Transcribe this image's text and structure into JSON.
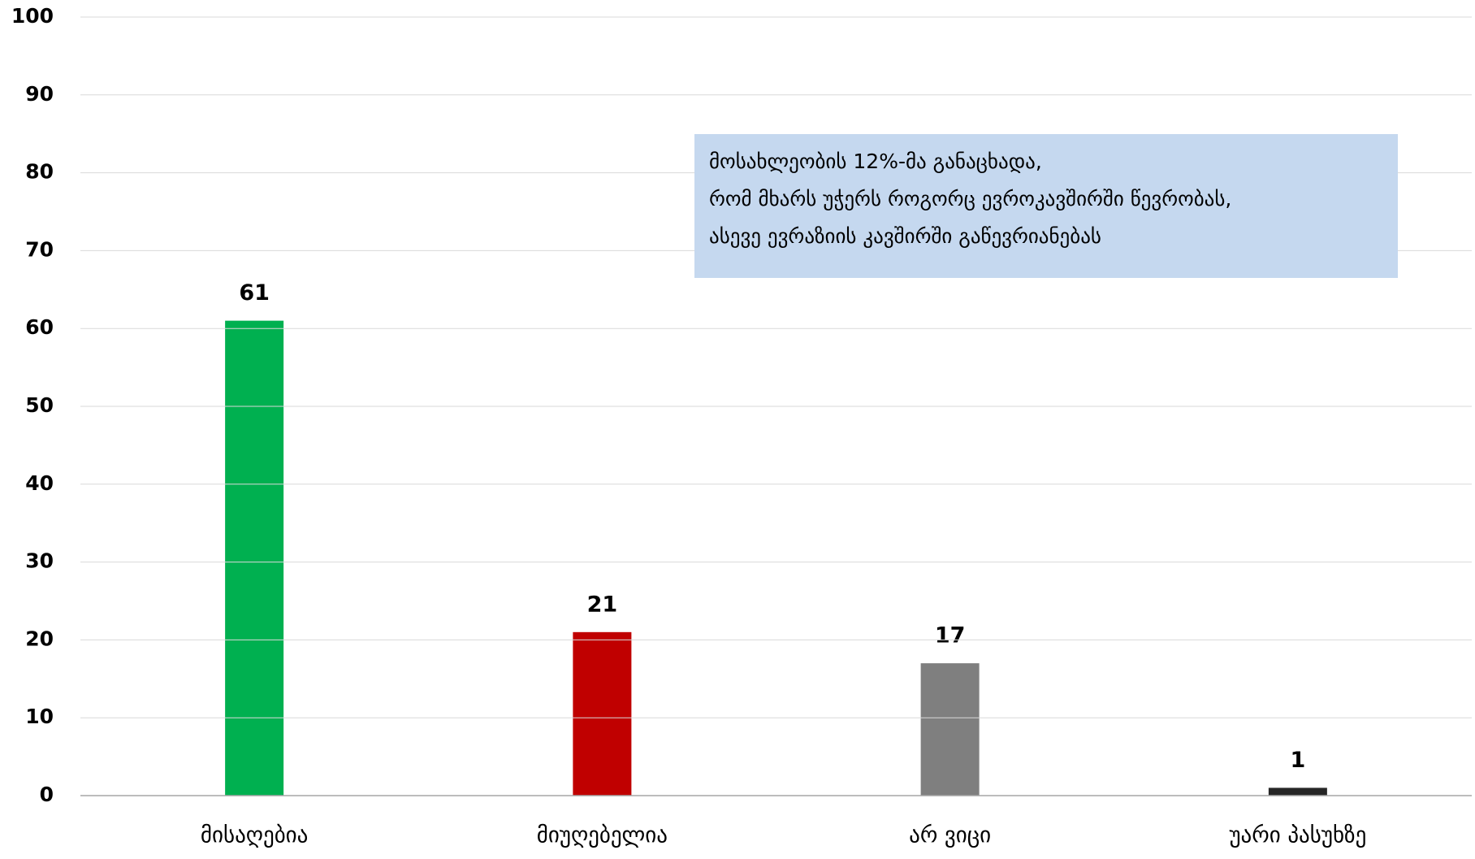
{
  "chart_data": {
    "type": "bar",
    "categories": [
      "მისაღებია",
      "მიუღებელია",
      "არ ვიცი",
      "უარი პასუხზე"
    ],
    "values": [
      61,
      21,
      17,
      1
    ],
    "colors": [
      "#00b050",
      "#c00000",
      "#7f7f7f",
      "#262626"
    ],
    "ylim": [
      0,
      100
    ],
    "yticks": [
      0,
      10,
      20,
      30,
      40,
      50,
      60,
      70,
      80,
      90,
      100
    ],
    "grid": true,
    "annotation": [
      "მოსახლეობის 12%-მა განაცხადა,",
      "რომ მხარს უჭერს როგორც  ევროკავშირში წევრობას,",
      "ასევე ევრაზიის კავშირში გაწევრიანებას"
    ]
  }
}
